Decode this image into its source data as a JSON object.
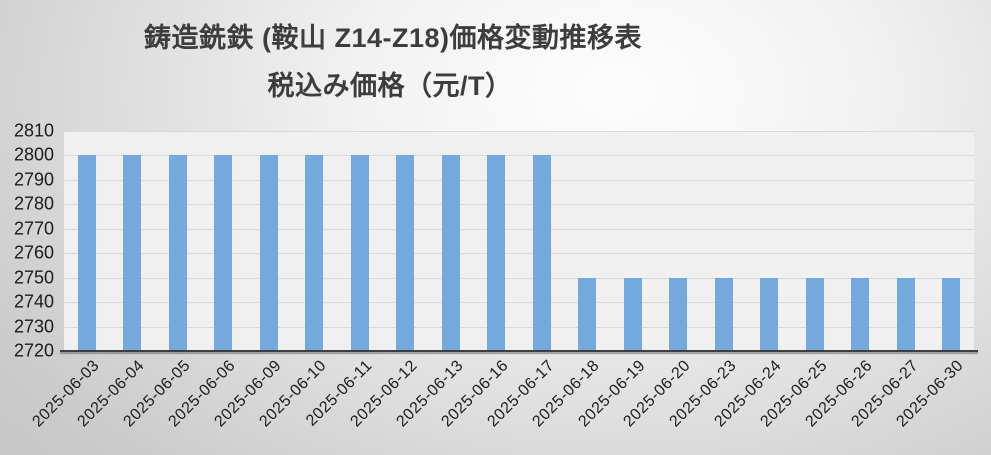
{
  "title": {
    "line1": "鋳造銑鉄 (鞍山 Z14-Z18)価格変動推移表",
    "line2": "税込み価格（元/T）"
  },
  "chart_data": {
    "type": "bar",
    "title": "鋳造銑鉄 (鞍山 Z14-Z18)価格変動推移表",
    "subtitle": "税込み価格（元/T）",
    "xlabel": "",
    "ylabel": "",
    "categories": [
      "2025-06-03",
      "2025-06-04",
      "2025-06-05",
      "2025-06-06",
      "2025-06-09",
      "2025-06-10",
      "2025-06-11",
      "2025-06-12",
      "2025-06-13",
      "2025-06-16",
      "2025-06-17",
      "2025-06-18",
      "2025-06-19",
      "2025-06-20",
      "2025-06-23",
      "2025-06-24",
      "2025-06-25",
      "2025-06-26",
      "2025-06-27",
      "2025-06-30"
    ],
    "values": [
      2800,
      2800,
      2800,
      2800,
      2800,
      2800,
      2800,
      2800,
      2800,
      2800,
      2800,
      2750,
      2750,
      2750,
      2750,
      2750,
      2750,
      2750,
      2750,
      2750
    ],
    "ylim": [
      2720,
      2810
    ],
    "ytick_step": 10,
    "ytick_labels": [
      "2810",
      "2800",
      "2790",
      "2780",
      "2770",
      "2760",
      "2750",
      "2740",
      "2730",
      "2720"
    ],
    "grid": true,
    "legend": false,
    "x_labels_rotation_deg": -45,
    "colors": {
      "bar": "#73a9dc",
      "plot_background": "#f0f0f1",
      "gridline": "#d9d9d9",
      "axis_line": "#3e3e3e",
      "tick_text": "#1c1c1c",
      "title_text": "#3d3d3d"
    }
  }
}
